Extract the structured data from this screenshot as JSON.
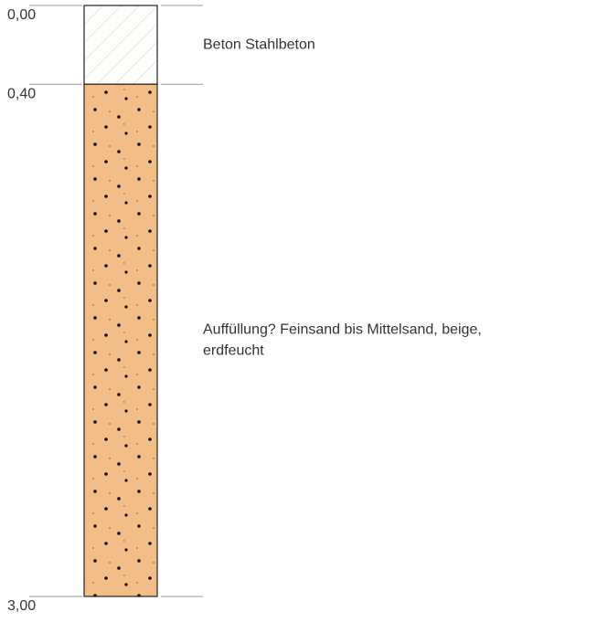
{
  "depths": [
    {
      "value": 0,
      "label": "0,00"
    },
    {
      "value": 0.4,
      "label": "0,40"
    },
    {
      "value": 3,
      "label": "3,00"
    }
  ],
  "layers": [
    {
      "pattern": "concrete",
      "description": [
        "Beton Stahlbeton"
      ]
    },
    {
      "pattern": "sand",
      "description": [
        "Auffüllung? Feinsand bis Mittelsand, beige,",
        "erdfeucht"
      ]
    }
  ]
}
